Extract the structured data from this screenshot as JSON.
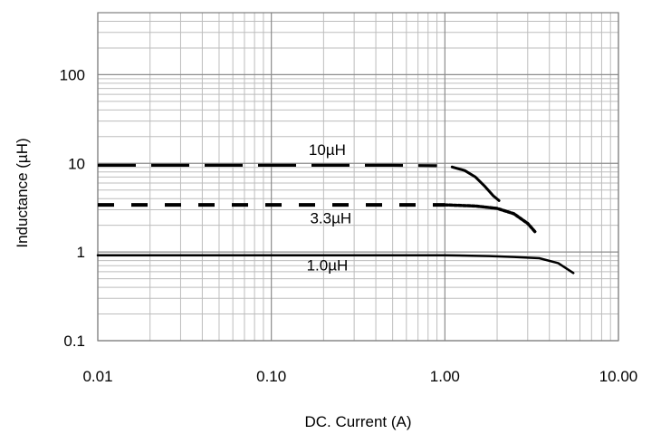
{
  "chart_data": {
    "type": "line",
    "title": "",
    "xlabel": "DC. Current (A)",
    "ylabel": "Inductance (µH)",
    "x_scale": "log",
    "y_scale": "log",
    "xlim": [
      0.01,
      10
    ],
    "ylim": [
      0.1,
      500
    ],
    "grid": true,
    "legend": "none",
    "x_ticks": [
      {
        "value": 0.01,
        "label": "0.01"
      },
      {
        "value": 0.1,
        "label": "0.10"
      },
      {
        "value": 1,
        "label": "1.00"
      },
      {
        "value": 10,
        "label": "10.00"
      }
    ],
    "y_ticks": [
      {
        "value": 0.1,
        "label": "0.1"
      },
      {
        "value": 1,
        "label": "1"
      },
      {
        "value": 10,
        "label": "10"
      },
      {
        "value": 100,
        "label": "100"
      }
    ],
    "series": [
      {
        "name": "10µH",
        "line_style": "long-dash-then-solid",
        "color": "#000000",
        "points": [
          [
            0.01,
            9.5
          ],
          [
            0.1,
            9.5
          ],
          [
            0.5,
            9.5
          ],
          [
            0.9,
            9.4
          ],
          [
            1.1,
            9.1
          ],
          [
            1.3,
            8.3
          ],
          [
            1.5,
            7.0
          ],
          [
            1.7,
            5.5
          ],
          [
            1.9,
            4.3
          ],
          [
            2.05,
            3.8
          ]
        ]
      },
      {
        "name": "3.3µH",
        "line_style": "short-dash-then-solid",
        "color": "#000000",
        "points": [
          [
            0.01,
            3.4
          ],
          [
            0.1,
            3.4
          ],
          [
            1.0,
            3.4
          ],
          [
            1.5,
            3.3
          ],
          [
            2.0,
            3.1
          ],
          [
            2.5,
            2.7
          ],
          [
            3.0,
            2.1
          ],
          [
            3.3,
            1.7
          ]
        ]
      },
      {
        "name": "1.0µH",
        "line_style": "solid",
        "color": "#000000",
        "points": [
          [
            0.01,
            0.92
          ],
          [
            0.1,
            0.92
          ],
          [
            1.0,
            0.92
          ],
          [
            1.8,
            0.9
          ],
          [
            2.5,
            0.88
          ],
          [
            3.5,
            0.85
          ],
          [
            4.5,
            0.75
          ],
          [
            5.5,
            0.58
          ]
        ]
      }
    ]
  }
}
